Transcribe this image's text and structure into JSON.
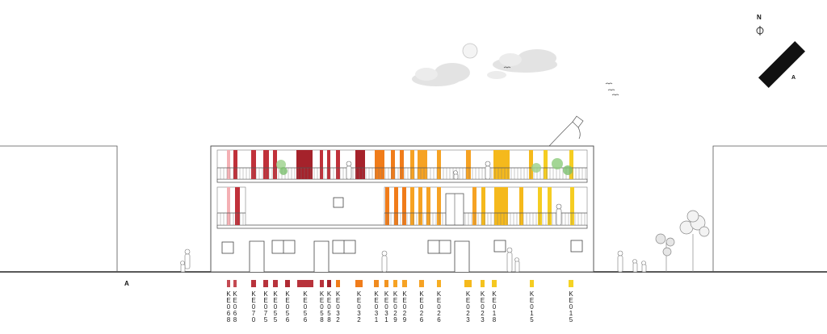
{
  "section_label": "A",
  "north": {
    "letter": "N",
    "section_label": "A"
  },
  "palette": {
    "red": "#c0313a",
    "dark_red": "#a5222b",
    "orange": "#f07c1a",
    "light_orange": "#f6a223",
    "amber": "#f5b91c",
    "yellow": "#f5cd22",
    "glass": "#f4b0b4",
    "outline": "#333333"
  },
  "legend": [
    {
      "code": "KE068",
      "color": "#c44a52"
    },
    {
      "code": "KE068",
      "color": "#c44a52"
    },
    {
      "code": "KE070",
      "color": "#b8323b"
    },
    {
      "code": "KE075",
      "color": "#b8323b"
    },
    {
      "code": "KE055",
      "color": "#b8323b"
    },
    {
      "code": "KE056",
      "color": "#b02a33"
    },
    {
      "code": "KE056",
      "color": "#b8323b"
    },
    {
      "code": "KE058",
      "color": "#b8323b"
    },
    {
      "code": "KE058",
      "color": "#a5222b"
    },
    {
      "code": "KE032",
      "color": "#f07c1a"
    },
    {
      "code": "KE032",
      "color": "#f07c1a"
    },
    {
      "code": "KE031",
      "color": "#f08a1e"
    },
    {
      "code": "KE031",
      "color": "#f29420"
    },
    {
      "code": "KE029",
      "color": "#f6a223"
    },
    {
      "code": "KE029",
      "color": "#f6a223"
    },
    {
      "code": "KE026",
      "color": "#f6a223"
    },
    {
      "code": "KE026",
      "color": "#f7ae22"
    },
    {
      "code": "KE023",
      "color": "#f5b91c"
    },
    {
      "code": "KE023",
      "color": "#f5c21e"
    },
    {
      "code": "KE018",
      "color": "#f5c820"
    },
    {
      "code": "KE015",
      "color": "#f5cd22"
    },
    {
      "code": "KE015",
      "color": "#f5d324"
    }
  ]
}
